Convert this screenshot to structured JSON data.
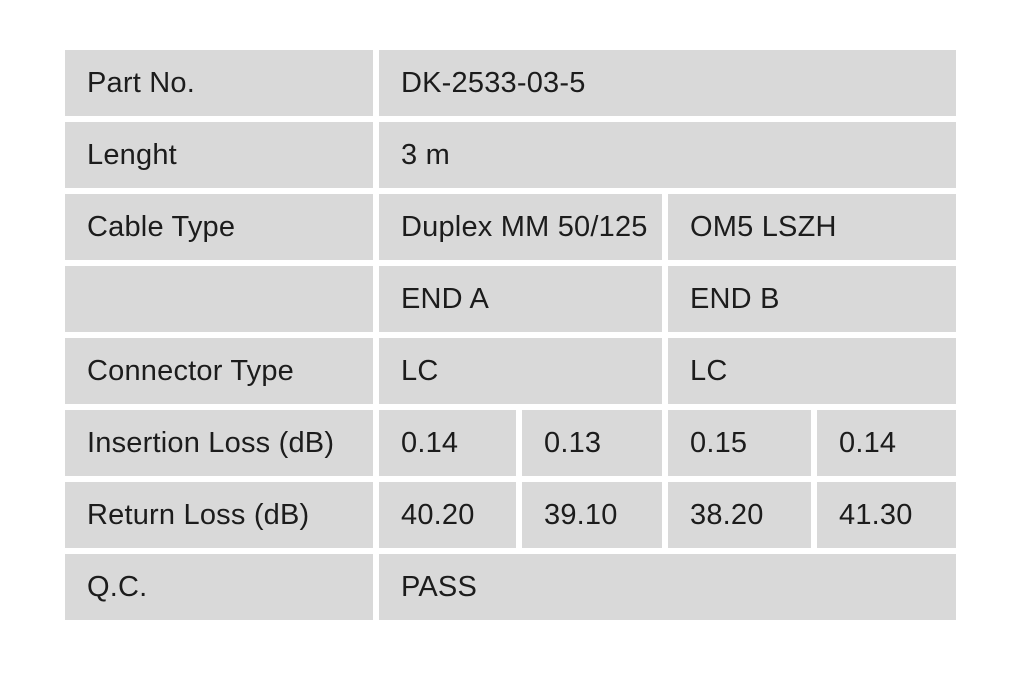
{
  "page": {
    "background_color": "#ffffff",
    "cell_fill_color": "#d9d9d9",
    "text_color": "#1c1c1c"
  },
  "spec_table": {
    "columns": 5,
    "rows": [
      {
        "key": "part-no",
        "cells": [
          {
            "text": "Part No.",
            "span": 1
          },
          {
            "text": "DK-2533-03-5",
            "span": 4
          }
        ]
      },
      {
        "key": "length",
        "cells": [
          {
            "text": "Lenght",
            "span": 1
          },
          {
            "text": "3 m",
            "span": 4
          }
        ]
      },
      {
        "key": "cable-type",
        "cells": [
          {
            "text": "Cable Type",
            "span": 1
          },
          {
            "text": "Duplex MM 50/125",
            "span": 2
          },
          {
            "text": "OM5 LSZH",
            "span": 2
          }
        ]
      },
      {
        "key": "ends-header",
        "cells": [
          {
            "text": "",
            "span": 1
          },
          {
            "text": "END A",
            "span": 2
          },
          {
            "text": "END B",
            "span": 2
          }
        ]
      },
      {
        "key": "connector-type",
        "cells": [
          {
            "text": "Connector Type",
            "span": 1
          },
          {
            "text": "LC",
            "span": 2
          },
          {
            "text": "LC",
            "span": 2
          }
        ]
      },
      {
        "key": "insertion-loss",
        "cells": [
          {
            "text": "Insertion Loss (dB)",
            "span": 1
          },
          {
            "text": "0.14",
            "span": 1
          },
          {
            "text": "0.13",
            "span": 1
          },
          {
            "text": "0.15",
            "span": 1
          },
          {
            "text": "0.14",
            "span": 1
          }
        ]
      },
      {
        "key": "return-loss",
        "cells": [
          {
            "text": "Return Loss (dB)",
            "span": 1
          },
          {
            "text": "40.20",
            "span": 1
          },
          {
            "text": "39.10",
            "span": 1
          },
          {
            "text": "38.20",
            "span": 1
          },
          {
            "text": "41.30",
            "span": 1
          }
        ]
      },
      {
        "key": "qc",
        "cells": [
          {
            "text": "Q.C.",
            "span": 1
          },
          {
            "text": "PASS",
            "span": 4
          }
        ]
      }
    ]
  }
}
